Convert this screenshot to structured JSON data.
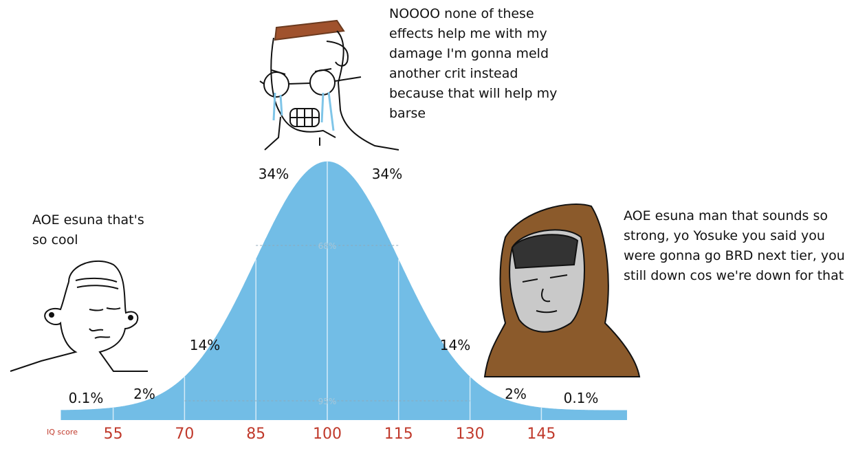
{
  "captions": {
    "top": [
      "NOOOO none of these",
      "effects help me with my",
      "damage I'm gonna meld",
      "another crit instead",
      "because that will help my",
      "barse"
    ],
    "left": [
      "AOE esuna that's",
      "so cool"
    ],
    "right": [
      "AOE esuna man that sounds so",
      "strong, yo Yosuke you said you",
      "were gonna go BRD next tier, you",
      "still down cos we're down for that"
    ]
  },
  "chart_data": {
    "type": "area",
    "x_label": "IQ score",
    "xlim": [
      44,
      163
    ],
    "xticks": [
      55,
      70,
      85,
      100,
      115,
      130,
      145
    ],
    "values": [
      0.1,
      2,
      14,
      34,
      34,
      14,
      2,
      0.1
    ],
    "value_labels": [
      "0.1%",
      "2%",
      "14%",
      "34%",
      "34%",
      "14%",
      "2%",
      "0.1%"
    ],
    "inner_labels": [
      "68%",
      "95%"
    ],
    "color": "#72bde6",
    "tick_color": "#c0392b"
  }
}
